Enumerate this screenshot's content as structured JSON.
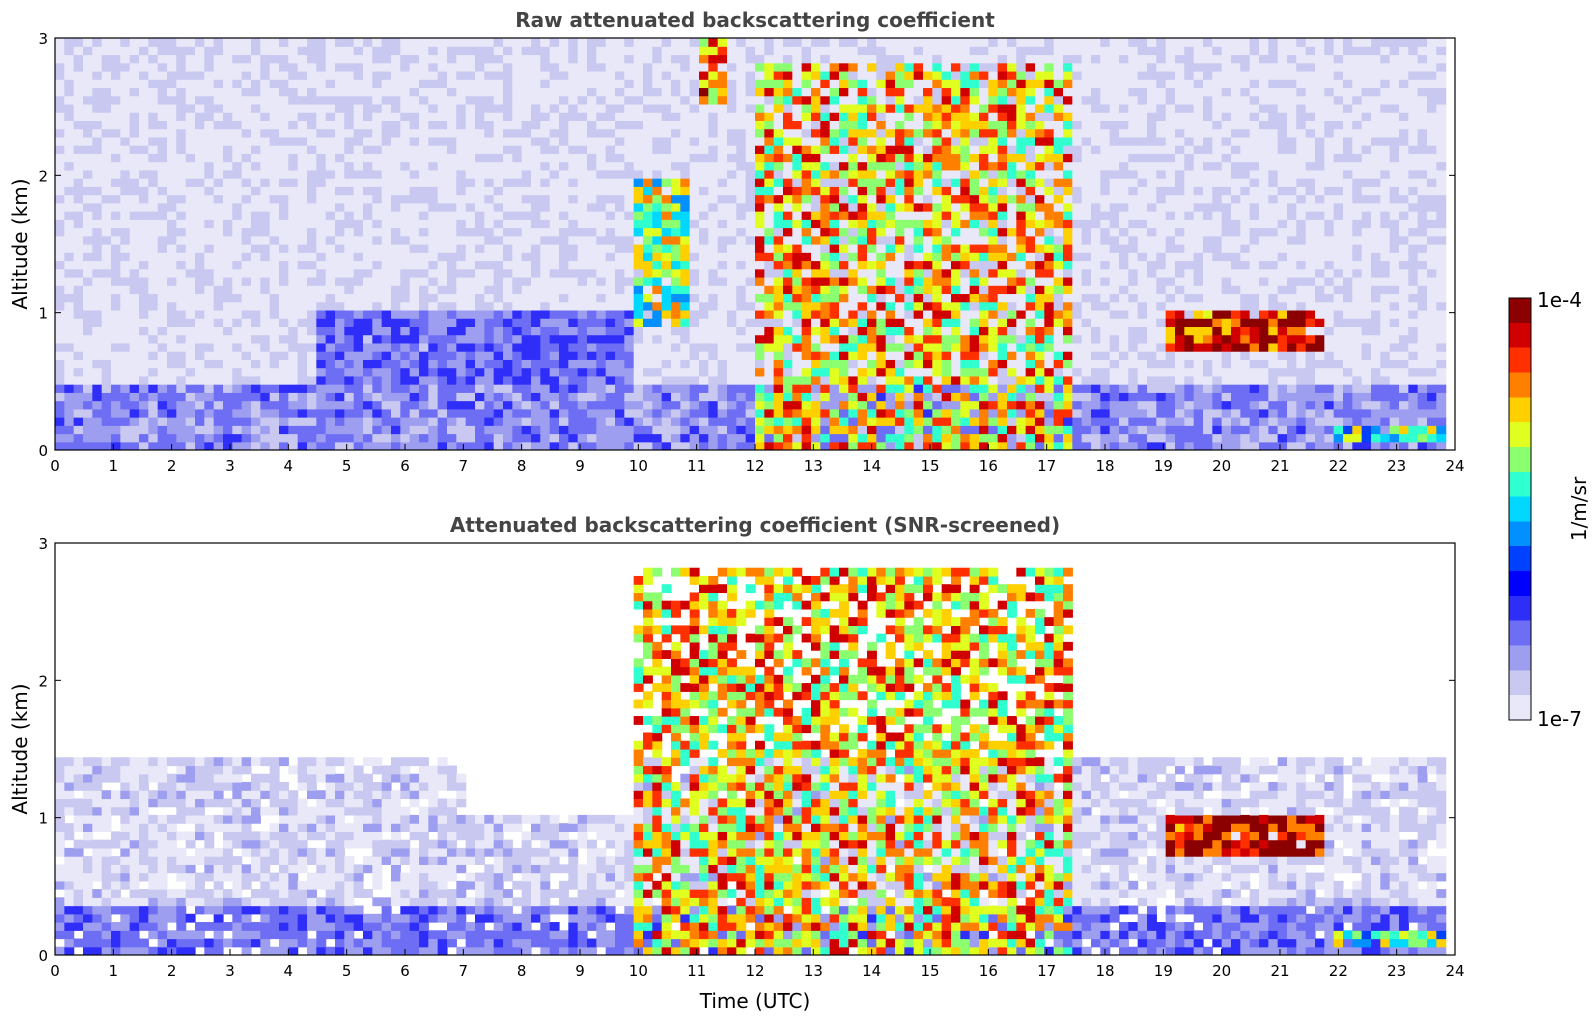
{
  "chart_data": [
    {
      "type": "heatmap",
      "title": "Raw attenuated backscattering coefficient",
      "xlabel": "",
      "ylabel": "Altitude (km)",
      "xlim": [
        0,
        24
      ],
      "ylim": [
        0,
        3
      ],
      "xticks": [
        "0",
        "1",
        "2",
        "3",
        "4",
        "5",
        "6",
        "7",
        "8",
        "9",
        "10",
        "11",
        "12",
        "13",
        "14",
        "15",
        "16",
        "17",
        "18",
        "19",
        "20",
        "21",
        "22",
        "23",
        "24"
      ],
      "yticks": [
        "0",
        "1",
        "2",
        "3"
      ],
      "features": [
        {
          "name": "boundary layer aerosol",
          "t_start": 0,
          "t_end": 17.5,
          "alt_top_km": 0.45,
          "log10_value": -6.5
        },
        {
          "name": "elevated aerosol layer",
          "t_start": 5,
          "t_end": 10,
          "alt_top_km": 1.0,
          "log10_value": -6.3
        },
        {
          "name": "cloud",
          "t_start": 10.0,
          "t_end": 10.8,
          "alt_bottom_km": 0.9,
          "alt_top_km": 2.0,
          "log10_value": -5.2
        },
        {
          "name": "high cloud",
          "t_start": 11.1,
          "t_end": 11.5,
          "alt_bottom_km": 2.5,
          "alt_top_km": 3.0,
          "log10_value": -4.6
        },
        {
          "name": "convective cloud field",
          "t_start": 12.0,
          "t_end": 17.5,
          "alt_bottom_km": 0.0,
          "alt_top_km": 2.8,
          "log10_value": -4.8
        },
        {
          "name": "cloud layer",
          "t_start": 19.0,
          "t_end": 21.8,
          "alt_bottom_km": 0.75,
          "alt_top_km": 1.0,
          "log10_value": -4.3
        },
        {
          "name": "low cloud",
          "t_start": 22.0,
          "t_end": 23.8,
          "alt_bottom_km": 0.05,
          "alt_top_km": 0.15,
          "log10_value": -5.3
        }
      ]
    },
    {
      "type": "heatmap",
      "title": "Attenuated backscattering coefficient (SNR-screened)",
      "xlabel": "Time (UTC)",
      "ylabel": "Altitude (km)",
      "xlim": [
        0,
        24
      ],
      "ylim": [
        0,
        3
      ],
      "xticks": [
        "0",
        "1",
        "2",
        "3",
        "4",
        "5",
        "6",
        "7",
        "8",
        "9",
        "10",
        "11",
        "12",
        "13",
        "14",
        "15",
        "16",
        "17",
        "18",
        "19",
        "20",
        "21",
        "22",
        "23",
        "24"
      ],
      "yticks": [
        "0",
        "1",
        "2",
        "3"
      ],
      "features": [
        {
          "name": "screened aerosol",
          "t_start": 0,
          "t_end": 23.8,
          "alt_top_km": 1.45,
          "log10_value": -6.6
        },
        {
          "name": "convective cloud field",
          "t_start": 10.0,
          "t_end": 17.5,
          "alt_bottom_km": 0.0,
          "alt_top_km": 2.8,
          "log10_value": -4.8
        },
        {
          "name": "cloud layer",
          "t_start": 19.0,
          "t_end": 21.8,
          "alt_bottom_km": 0.75,
          "alt_top_km": 1.0,
          "log10_value": -4.2
        },
        {
          "name": "low cloud",
          "t_start": 22.0,
          "t_end": 23.8,
          "alt_bottom_km": 0.05,
          "alt_top_km": 0.15,
          "log10_value": -5.3
        }
      ]
    }
  ],
  "colorbar": {
    "label": "1/m/sr",
    "max_label": "1e-4",
    "min_label": "1e-7",
    "scale": "log",
    "range": [
      1e-07,
      0.0001
    ],
    "colors": [
      "#e8e8f8",
      "#c8c8f0",
      "#9e9ef0",
      "#6e6ef5",
      "#2e2ef8",
      "#0000ff",
      "#0040ff",
      "#0090ff",
      "#00d8ff",
      "#30ffd0",
      "#8cff70",
      "#e0ff20",
      "#ffd000",
      "#ff8000",
      "#ff3000",
      "#d00000",
      "#8b0000"
    ]
  }
}
